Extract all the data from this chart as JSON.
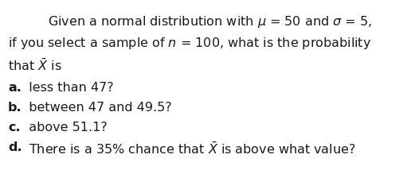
{
  "background_color": "#ffffff",
  "figsize": [
    5.26,
    2.19
  ],
  "dpi": 100,
  "text_color": "#1a1a1a",
  "fontsize": 11.5,
  "line1": "Given a normal distribution with $\\mu$ = 50 and $\\sigma$ = 5,",
  "line2": "if you select a sample of $n$ = 100, what is the probability",
  "line3": "that $\\bar{X}$ is",
  "line4_bold": "a.",
  "line4_rest": "  less than 47?",
  "line5_bold": "b.",
  "line5_rest": "  between 47 and 49.5?",
  "line6_bold": "c.",
  "line6_rest": "  above 51.1?",
  "line7_bold": "d.",
  "line7_rest": "  There is a 35% chance that $\\bar{X}$ is above what value?"
}
